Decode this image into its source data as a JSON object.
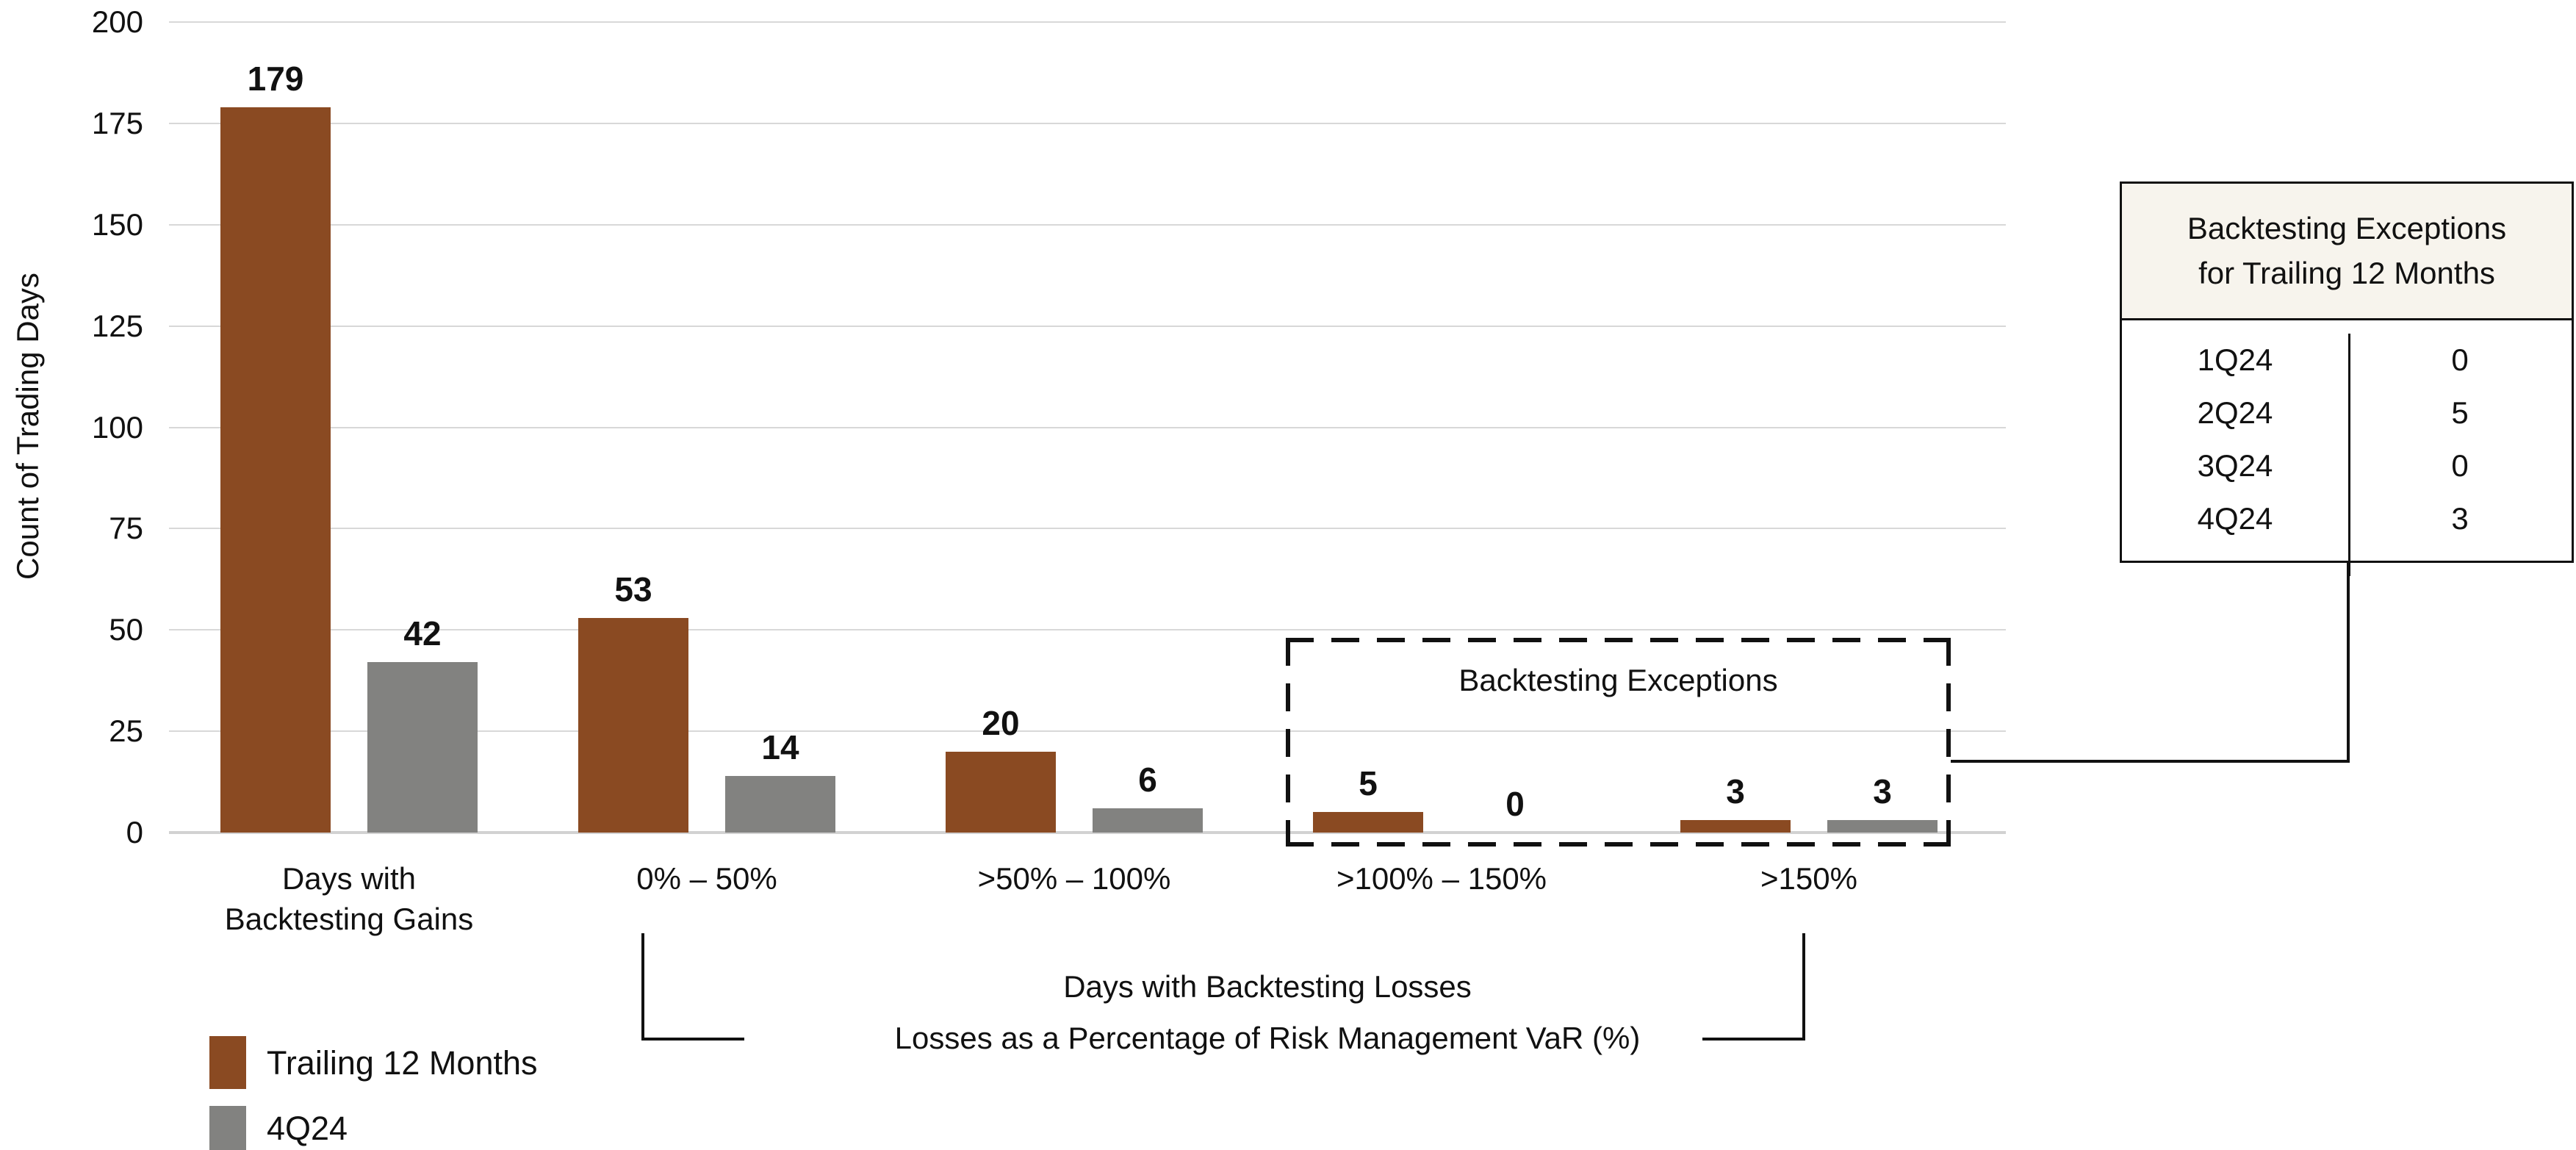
{
  "chart_data": {
    "type": "bar",
    "title": "",
    "ylabel": "Count of Trading Days",
    "xlabel_line1": "Days with Backtesting Losses",
    "xlabel_line2": "Losses as a Percentage of Risk Management VaR (%)",
    "ylim": [
      0,
      200
    ],
    "yticks": [
      0,
      25,
      50,
      75,
      100,
      125,
      150,
      175,
      200
    ],
    "grid": true,
    "legend_position": "bottom-left",
    "categories": [
      "Days with\nBacktesting Gains",
      "0% – 50%",
      ">50% – 100%",
      ">100% – 150%",
      ">150%"
    ],
    "series": [
      {
        "name": "Trailing 12 Months",
        "color": "#8A4A22",
        "values": [
          179,
          53,
          20,
          5,
          3
        ]
      },
      {
        "name": "4Q24",
        "color": "#828280",
        "values": [
          42,
          14,
          6,
          0,
          3
        ]
      }
    ],
    "annotation_box": {
      "label": "Backtesting Exceptions",
      "categories_covered": [
        ">100% – 150%",
        ">150%"
      ],
      "border_style": "dashed"
    }
  },
  "side_table": {
    "title_line1": "Backtesting Exceptions",
    "title_line2": "for Trailing 12 Months",
    "header_bg": "#F7F4ED",
    "rows": [
      {
        "quarter": "1Q24",
        "value": "0"
      },
      {
        "quarter": "2Q24",
        "value": "5"
      },
      {
        "quarter": "3Q24",
        "value": "0"
      },
      {
        "quarter": "4Q24",
        "value": "3"
      }
    ]
  },
  "colors": {
    "brown": "#8A4A22",
    "gray": "#828280",
    "gridline": "#D8D8D8",
    "line": "#111111"
  }
}
